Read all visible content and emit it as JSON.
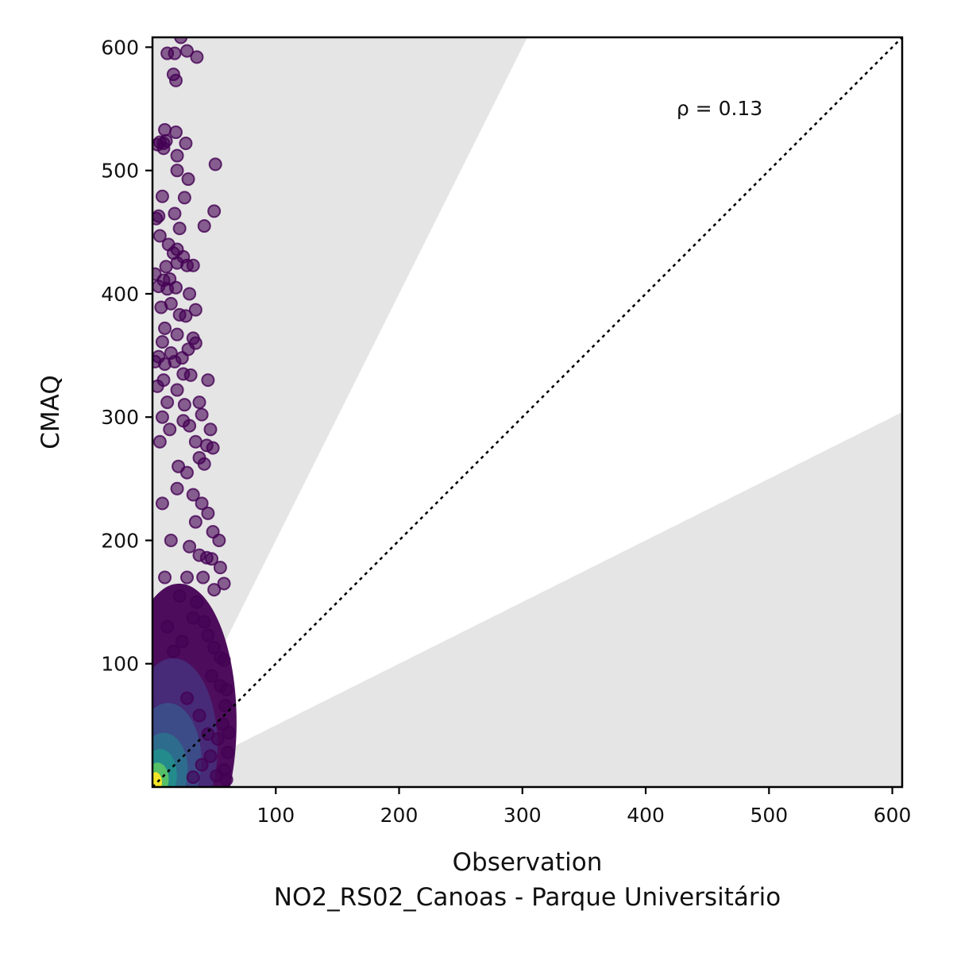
{
  "chart_data": {
    "type": "scatter",
    "title": "",
    "xlabel": "Observation",
    "xlabel_sub": "NO2_RS02_Canoas - Parque Universitário",
    "ylabel": "CMAQ",
    "xlim": [
      0,
      608
    ],
    "ylim": [
      0,
      608
    ],
    "x_ticks": [
      100,
      200,
      300,
      400,
      500,
      600
    ],
    "y_ticks": [
      100,
      200,
      300,
      400,
      500,
      600
    ],
    "annotation": {
      "text": "ρ = 0.13",
      "x": 425,
      "y": 545
    },
    "reference_line": {
      "type": "1:1",
      "style": "dotted",
      "color": "#000000"
    },
    "shaded_regions": [
      {
        "name": "above factor 2",
        "polygon": [
          [
            0,
            0
          ],
          [
            304,
            608
          ],
          [
            0,
            608
          ]
        ],
        "color": "#e5e5e5"
      },
      {
        "name": "below factor 2",
        "polygon": [
          [
            0,
            0
          ],
          [
            608,
            0
          ],
          [
            608,
            304
          ]
        ],
        "color": "#e5e5e5"
      }
    ],
    "colormap": [
      "#440154",
      "#3b528b",
      "#21918c",
      "#5ec962",
      "#fde725"
    ],
    "marker_edge_color": "#440154",
    "legend": "none",
    "grid": false,
    "points": [
      [
        23,
        608
      ],
      [
        12,
        595
      ],
      [
        18,
        595
      ],
      [
        28,
        597
      ],
      [
        36,
        592
      ],
      [
        17,
        578
      ],
      [
        19,
        573
      ],
      [
        6,
        523
      ],
      [
        9,
        522
      ],
      [
        11,
        524
      ],
      [
        4,
        521
      ],
      [
        9,
        518
      ],
      [
        10,
        533
      ],
      [
        19,
        531
      ],
      [
        27,
        522
      ],
      [
        20,
        512
      ],
      [
        20,
        500
      ],
      [
        29,
        493
      ],
      [
        26,
        478
      ],
      [
        51,
        505
      ],
      [
        50,
        467
      ],
      [
        42,
        455
      ],
      [
        8,
        479
      ],
      [
        18,
        465
      ],
      [
        22,
        453
      ],
      [
        5,
        463
      ],
      [
        3,
        461
      ],
      [
        6,
        447
      ],
      [
        13,
        440
      ],
      [
        17,
        433
      ],
      [
        20,
        436
      ],
      [
        25,
        430
      ],
      [
        11,
        422
      ],
      [
        20,
        425
      ],
      [
        28,
        423
      ],
      [
        33,
        423
      ],
      [
        2,
        416
      ],
      [
        9,
        411
      ],
      [
        14,
        412
      ],
      [
        5,
        406
      ],
      [
        12,
        404
      ],
      [
        19,
        405
      ],
      [
        30,
        400
      ],
      [
        35,
        387
      ],
      [
        7,
        389
      ],
      [
        15,
        392
      ],
      [
        22,
        383
      ],
      [
        27,
        382
      ],
      [
        10,
        372
      ],
      [
        8,
        361
      ],
      [
        20,
        367
      ],
      [
        33,
        364
      ],
      [
        35,
        360
      ],
      [
        29,
        355
      ],
      [
        15,
        352
      ],
      [
        5,
        349
      ],
      [
        2,
        345
      ],
      [
        10,
        343
      ],
      [
        25,
        335
      ],
      [
        31,
        334
      ],
      [
        45,
        330
      ],
      [
        38,
        312
      ],
      [
        20,
        322
      ],
      [
        40,
        302
      ],
      [
        47,
        290
      ],
      [
        44,
        277
      ],
      [
        49,
        275
      ],
      [
        38,
        267
      ],
      [
        42,
        262
      ],
      [
        12,
        312
      ],
      [
        8,
        300
      ],
      [
        25,
        297
      ],
      [
        30,
        293
      ],
      [
        35,
        280
      ],
      [
        28,
        255
      ],
      [
        20,
        242
      ],
      [
        33,
        237
      ],
      [
        40,
        230
      ],
      [
        45,
        222
      ],
      [
        49,
        207
      ],
      [
        54,
        200
      ],
      [
        35,
        215
      ],
      [
        30,
        195
      ],
      [
        38,
        188
      ],
      [
        44,
        186
      ],
      [
        48,
        185
      ],
      [
        55,
        178
      ],
      [
        58,
        165
      ],
      [
        50,
        160
      ],
      [
        41,
        170
      ],
      [
        28,
        170
      ],
      [
        22,
        155
      ],
      [
        36,
        150
      ],
      [
        33,
        137
      ],
      [
        42,
        134
      ],
      [
        45,
        123
      ],
      [
        50,
        113
      ],
      [
        55,
        105
      ],
      [
        58,
        103
      ],
      [
        48,
        90
      ],
      [
        55,
        82
      ],
      [
        60,
        79
      ],
      [
        59,
        66
      ],
      [
        57,
        51
      ],
      [
        62,
        44
      ],
      [
        53,
        39
      ],
      [
        61,
        28
      ],
      [
        47,
        25
      ],
      [
        58,
        14
      ],
      [
        60,
        6
      ],
      [
        52,
        9
      ],
      [
        40,
        18
      ],
      [
        33,
        8
      ],
      [
        45,
        43
      ],
      [
        38,
        58
      ],
      [
        28,
        72
      ],
      [
        17,
        110
      ],
      [
        12,
        130
      ],
      [
        24,
        118
      ],
      [
        10,
        170
      ],
      [
        15,
        200
      ],
      [
        8,
        230
      ],
      [
        21,
        260
      ],
      [
        6,
        280
      ],
      [
        14,
        290
      ],
      [
        26,
        310
      ],
      [
        9,
        330
      ],
      [
        18,
        345
      ],
      [
        24,
        348
      ],
      [
        4,
        325
      ]
    ]
  }
}
